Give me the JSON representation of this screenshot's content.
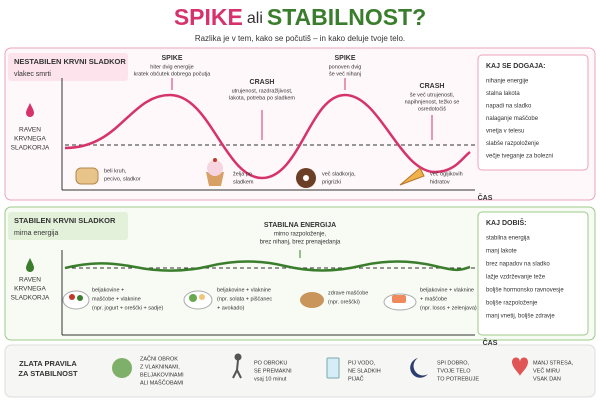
{
  "header": {
    "title_1": "SPIKE",
    "title_2": "ali",
    "title_3": "STABILNOST?",
    "subtitle": "Razlika je v tem, kako se počutiš – in kako deluje tvoje telo."
  },
  "top": {
    "title": "NESTABILEN KRVNI SLADKOR",
    "subtitle": "vlakec smrti",
    "y_label": [
      "RAVEN",
      "KRVNEGA",
      "SLADKORJA"
    ],
    "x_label": "ČAS",
    "annotations": [
      {
        "title": "SPIKE",
        "lines": [
          "hiter dvig energije",
          "kratek občutek dobrega počutja"
        ]
      },
      {
        "title": "CRASH",
        "lines": [
          "utrujenost, razdražljivost,",
          "lakota, potreba po sladkem"
        ]
      },
      {
        "title": "SPIKE",
        "lines": [
          "ponoven dvig",
          "še več nihanj"
        ]
      },
      {
        "title": "CRASH",
        "lines": [
          "še več utrujenosti,",
          "napihnjenost, težko se",
          "osredotočiš"
        ]
      }
    ],
    "foods": [
      [
        "beli kruh,",
        "pecivo, sladkor"
      ],
      [
        "želja po",
        "sladkem"
      ],
      [
        "več sladkorja,",
        "prigrizki"
      ],
      [
        "več ogljikovih",
        "hidratov"
      ]
    ],
    "side_title": "KAJ SE DOGAJA:",
    "side_items": [
      "nihanje energije",
      "stalna lakota",
      "napadi na sladko",
      "nalaganje maščobe",
      "vnetja v telesu",
      "slabše razpoloženje",
      "večje tveganje za bolezni"
    ]
  },
  "bottom": {
    "title": "STABILEN KRVNI SLADKOR",
    "subtitle": "mirna energija",
    "y_label": [
      "RAVEN",
      "KRVNEGA",
      "SLADKORJA"
    ],
    "x_label": "ČAS",
    "annotation": {
      "title": "STABILNA ENERGIJA",
      "lines": [
        "mirno razpoloženje,",
        "brez nihanj, brez prenajedanja"
      ]
    },
    "foods": [
      [
        "beljakovine +",
        "maščobe + vlaknine",
        "(npr. jogurt + oreščki + sadje)"
      ],
      [
        "beljakovine + vlaknine",
        "(npr. solata + piščanec",
        "+ avokado)"
      ],
      [
        "zdrave maščobe",
        "(npr. oreščki)"
      ],
      [
        "beljakovine + vlaknine",
        "+ maščobe",
        "(npr. losos + zelenjava)"
      ]
    ],
    "side_title": "KAJ DOBIŠ:",
    "side_items": [
      "stabilna energija",
      "manj lakote",
      "brez napadov na sladko",
      "lažje vzdrževanje teže",
      "boljše hormonsko ravnovesje",
      "boljše razpoloženje",
      "manj vnetij, boljše zdravje"
    ]
  },
  "rules": {
    "title": [
      "ZLATA PRAVILA",
      "ZA STABILNOST"
    ],
    "items": [
      [
        "ZAČNI OBROK",
        "Z VLAKNINAMI,",
        "BELJAKOVINAMI",
        "ALI MAŠČOBAMI"
      ],
      [
        "PO OBROKU",
        "SE PREMAKNI",
        "vsaj 10 minut"
      ],
      [
        "PIJ VODO,",
        "NE SLADKIH",
        "PIJAČ"
      ],
      [
        "SPI DOBRO,",
        "TVOJE TELO",
        "TO POTREBUJE"
      ],
      [
        "MANJ STRESA,",
        "VEČ MIRU",
        "VSAK DAN"
      ]
    ]
  }
}
